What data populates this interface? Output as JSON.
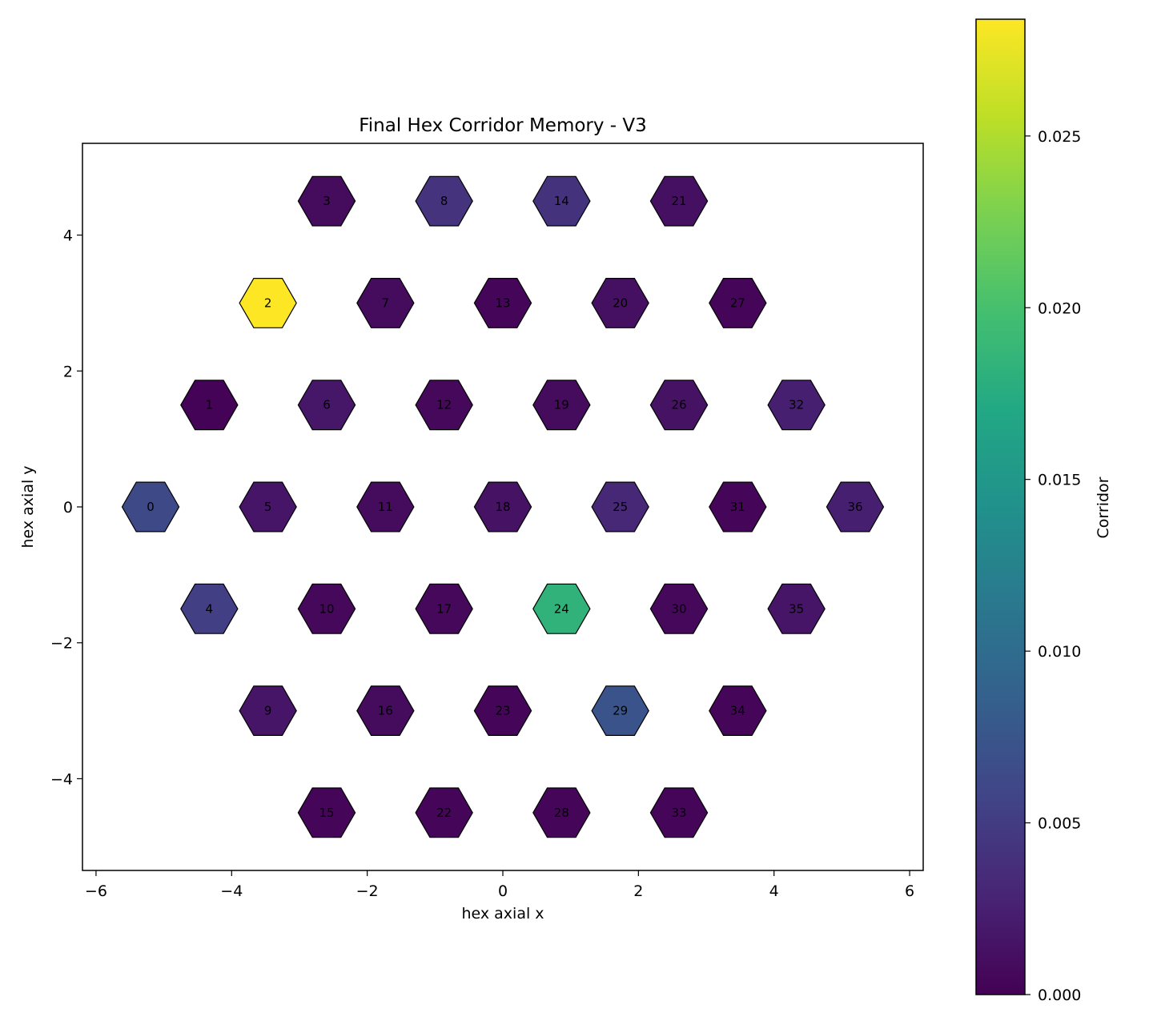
{
  "chart_data": {
    "type": "heatmap",
    "title": "Final Hex Corridor Memory - V3",
    "xlabel": "hex axial x",
    "ylabel": "hex axial y",
    "xlim": [
      -6.2,
      6.2
    ],
    "ylim": [
      -5.35,
      5.35
    ],
    "xticks": [
      -6,
      -4,
      -2,
      0,
      2,
      4,
      6
    ],
    "xtick_labels": [
      "−6",
      "−4",
      "−2",
      "0",
      "2",
      "4",
      "6"
    ],
    "yticks": [
      -4,
      -2,
      0,
      2,
      4
    ],
    "ytick_labels": [
      "−4",
      "−2",
      "0",
      "2",
      "4"
    ],
    "colorbar": {
      "label": "Corridor",
      "min": 0.0,
      "max": 0.0284,
      "ticks": [
        0.0,
        0.005,
        0.01,
        0.015,
        0.02,
        0.025
      ],
      "tick_labels": [
        "0.000",
        "0.005",
        "0.010",
        "0.015",
        "0.020",
        "0.025"
      ],
      "colormap": "viridis"
    },
    "cells": [
      {
        "id": "0",
        "x": -5.196,
        "y": 0.0,
        "value": 0.0063
      },
      {
        "id": "1",
        "x": -4.33,
        "y": 1.5,
        "value": 0.0002
      },
      {
        "id": "2",
        "x": -3.464,
        "y": 3.0,
        "value": 0.0284
      },
      {
        "id": "3",
        "x": -2.598,
        "y": 4.5,
        "value": 0.0008
      },
      {
        "id": "4",
        "x": -4.33,
        "y": -1.5,
        "value": 0.0052
      },
      {
        "id": "5",
        "x": -3.464,
        "y": 0.0,
        "value": 0.0016
      },
      {
        "id": "6",
        "x": -2.598,
        "y": 1.5,
        "value": 0.0017
      },
      {
        "id": "7",
        "x": -1.732,
        "y": 3.0,
        "value": 0.0008
      },
      {
        "id": "8",
        "x": -0.866,
        "y": 4.5,
        "value": 0.0042
      },
      {
        "id": "9",
        "x": -3.464,
        "y": -3.0,
        "value": 0.0016
      },
      {
        "id": "10",
        "x": -2.598,
        "y": -1.5,
        "value": 0.0006
      },
      {
        "id": "11",
        "x": -1.732,
        "y": 0.0,
        "value": 0.0008
      },
      {
        "id": "12",
        "x": -0.866,
        "y": 1.5,
        "value": 0.0006
      },
      {
        "id": "13",
        "x": 0.0,
        "y": 3.0,
        "value": 0.0004
      },
      {
        "id": "14",
        "x": 0.866,
        "y": 4.5,
        "value": 0.0041
      },
      {
        "id": "15",
        "x": -2.598,
        "y": -4.5,
        "value": 0.0004
      },
      {
        "id": "16",
        "x": -1.732,
        "y": -3.0,
        "value": 0.0008
      },
      {
        "id": "17",
        "x": -0.866,
        "y": -1.5,
        "value": 0.0006
      },
      {
        "id": "18",
        "x": 0.0,
        "y": 0.0,
        "value": 0.0014
      },
      {
        "id": "19",
        "x": 0.866,
        "y": 1.5,
        "value": 0.0008
      },
      {
        "id": "20",
        "x": 1.732,
        "y": 3.0,
        "value": 0.0012
      },
      {
        "id": "21",
        "x": 2.598,
        "y": 4.5,
        "value": 0.0012
      },
      {
        "id": "22",
        "x": -0.866,
        "y": -4.5,
        "value": 0.0004
      },
      {
        "id": "23",
        "x": 0.0,
        "y": -3.0,
        "value": 0.0004
      },
      {
        "id": "24",
        "x": 0.866,
        "y": -1.5,
        "value": 0.0183
      },
      {
        "id": "25",
        "x": 1.732,
        "y": 0.0,
        "value": 0.0032
      },
      {
        "id": "26",
        "x": 2.598,
        "y": 1.5,
        "value": 0.0014
      },
      {
        "id": "27",
        "x": 3.464,
        "y": 3.0,
        "value": 0.0004
      },
      {
        "id": "28",
        "x": 0.866,
        "y": -4.5,
        "value": 0.0004
      },
      {
        "id": "29",
        "x": 1.732,
        "y": -3.0,
        "value": 0.0074
      },
      {
        "id": "30",
        "x": 2.598,
        "y": -1.5,
        "value": 0.0006
      },
      {
        "id": "31",
        "x": 3.464,
        "y": 0.0,
        "value": 0.0004
      },
      {
        "id": "32",
        "x": 4.33,
        "y": 1.5,
        "value": 0.0024
      },
      {
        "id": "33",
        "x": 2.598,
        "y": -4.5,
        "value": 0.0004
      },
      {
        "id": "34",
        "x": 3.464,
        "y": -3.0,
        "value": 0.0004
      },
      {
        "id": "35",
        "x": 4.33,
        "y": -1.5,
        "value": 0.0016
      },
      {
        "id": "36",
        "x": 5.196,
        "y": 0.0,
        "value": 0.0024
      }
    ]
  }
}
